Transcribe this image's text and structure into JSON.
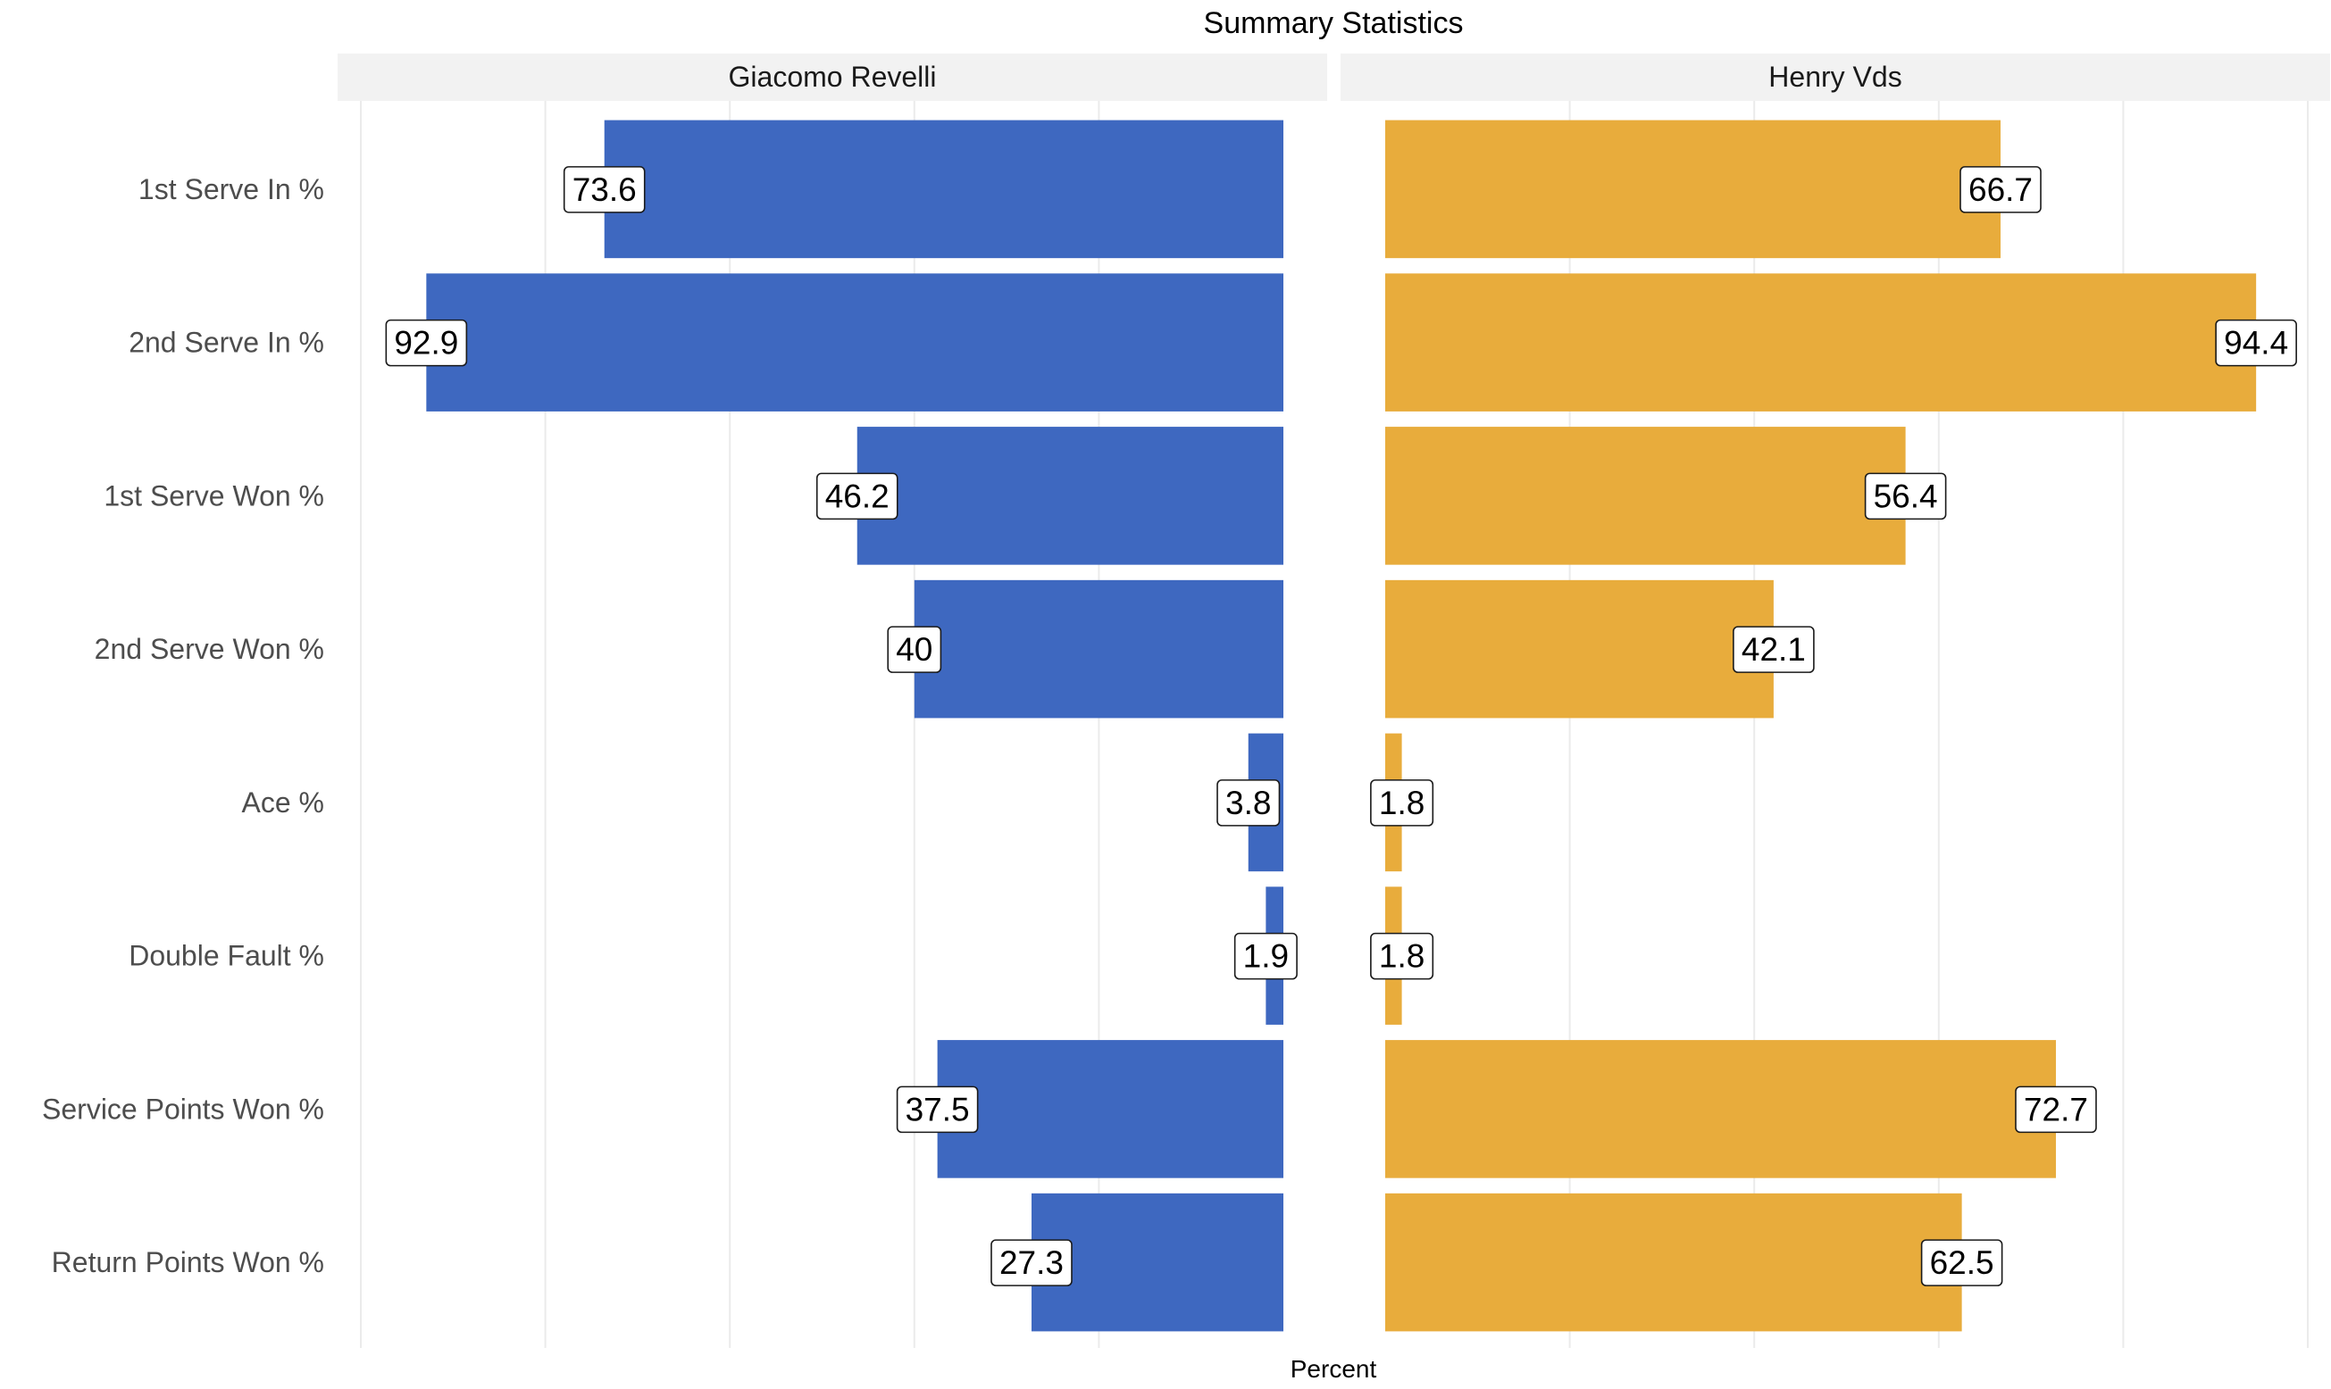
{
  "chart_data": {
    "type": "bar",
    "orientation": "horizontal",
    "layout": "back-to-back facets",
    "title": "Summary Statistics",
    "xlabel": "Percent",
    "ylabel": "",
    "xlim": [
      0,
      100
    ],
    "categories": [
      "1st Serve In %",
      "2nd Serve In %",
      "1st Serve Won %",
      "2nd Serve Won %",
      "Ace %",
      "Double Fault %",
      "Service Points Won %",
      "Return Points Won %"
    ],
    "series": [
      {
        "name": "Giacomo Revelli",
        "color": "#3e68c0",
        "direction": "left",
        "values": [
          73.6,
          92.9,
          46.2,
          40,
          3.8,
          1.9,
          37.5,
          27.3
        ],
        "labels": [
          "73.6",
          "92.9",
          "46.2",
          "40",
          "3.8",
          "1.9",
          "37.5",
          "27.3"
        ]
      },
      {
        "name": "Henry Vds",
        "color": "#e8ac3c",
        "direction": "right",
        "values": [
          66.7,
          94.4,
          56.4,
          42.1,
          1.8,
          1.8,
          72.7,
          62.5
        ],
        "labels": [
          "66.7",
          "94.4",
          "56.4",
          "42.1",
          "1.8",
          "1.8",
          "72.7",
          "62.5"
        ]
      }
    ],
    "grid": true,
    "x_tick_labels_shown": false,
    "legend": "none",
    "strip_background": "#f2f2f2"
  }
}
